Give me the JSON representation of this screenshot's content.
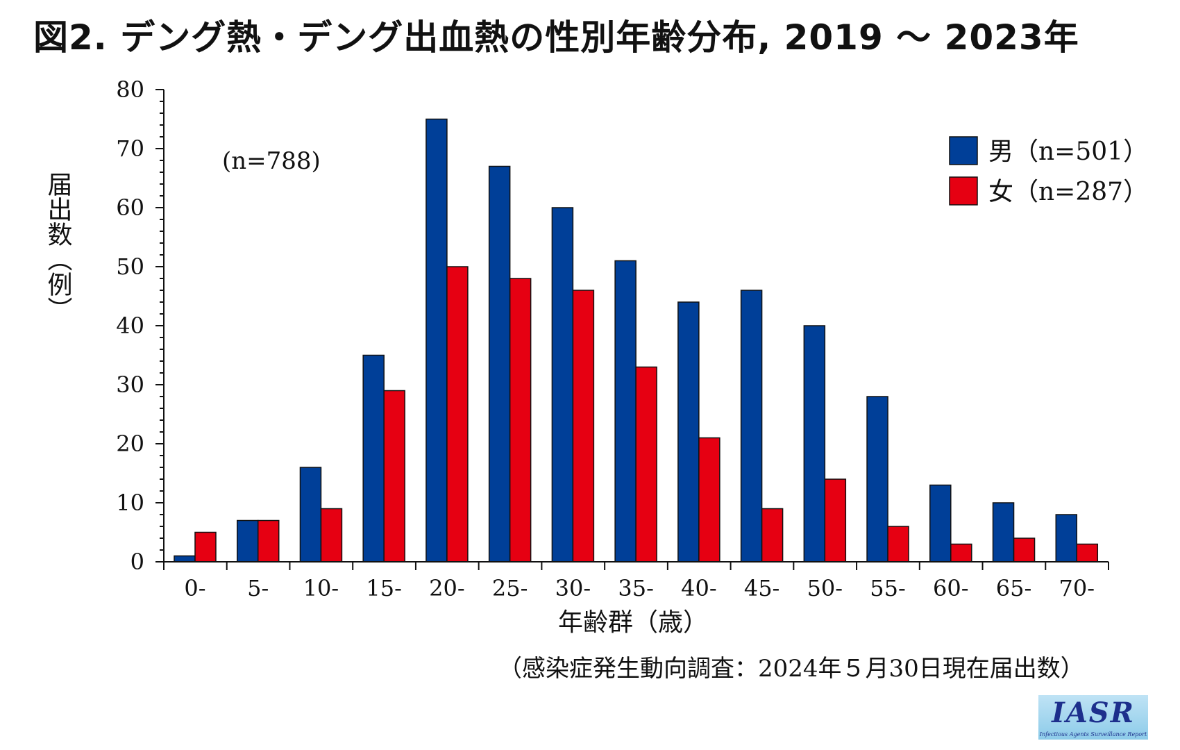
{
  "figure": {
    "title": "図2. デング熱・デング出血熱の性別年齢分布, 2019 〜 2023年",
    "source_note": "（感染症発生動向調査：2024年５月30日現在届出数）",
    "logo": {
      "text": "IASR",
      "subtext": "Infectious Agents Surveillance Report"
    }
  },
  "chart_data": {
    "type": "bar",
    "title": "",
    "xlabel": "年齢群（歳）",
    "ylabel": "届出数（例）",
    "ylim": [
      0,
      80
    ],
    "yticks": [
      "0",
      "10",
      "20",
      "30",
      "40",
      "50",
      "60",
      "70",
      "80"
    ],
    "categories": [
      "0-",
      "5-",
      "10-",
      "15-",
      "20-",
      "25-",
      "30-",
      "35-",
      "40-",
      "45-",
      "50-",
      "55-",
      "60-",
      "65-",
      "70-"
    ],
    "series": [
      {
        "name": "男（n=501）",
        "color": "#003f98",
        "values": [
          1,
          7,
          16,
          35,
          75,
          67,
          60,
          51,
          44,
          46,
          40,
          28,
          13,
          10,
          8
        ]
      },
      {
        "name": "女（n=287）",
        "color": "#e60012",
        "values": [
          5,
          7,
          9,
          29,
          50,
          48,
          46,
          33,
          21,
          9,
          14,
          6,
          3,
          4,
          3
        ]
      }
    ],
    "annotation": "(n=788)",
    "legend_position": "top-right",
    "grid": false
  }
}
